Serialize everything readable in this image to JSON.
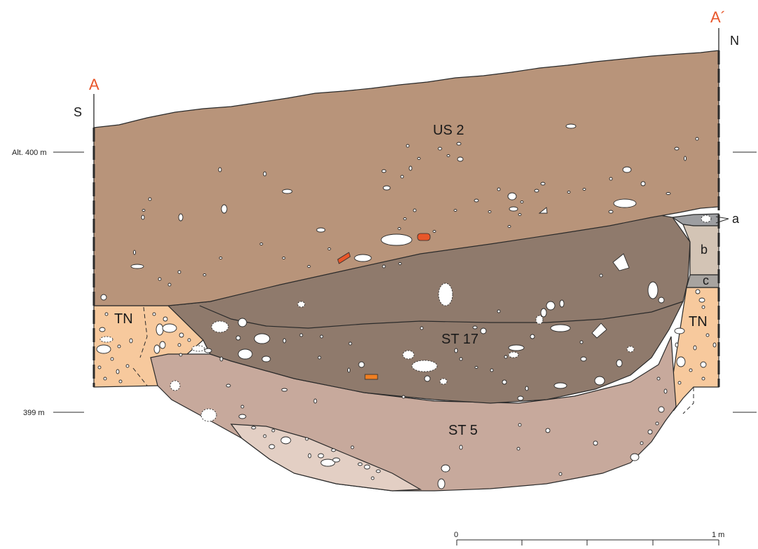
{
  "profile": {
    "start_letter": "A",
    "end_letter": "A´",
    "south": "S",
    "north": "N"
  },
  "altitudes": {
    "upper": "Alt. 400 m",
    "lower": "399 m"
  },
  "units": {
    "us2": "US 2",
    "st17": "ST 17",
    "st5": "ST 5",
    "tn_left": "TN",
    "tn_right": "TN",
    "a": "a",
    "b": "b",
    "c": "c"
  },
  "scale": {
    "zero": "0",
    "max": "1 m"
  },
  "colors": {
    "us2": "#b8947a",
    "st17": "#8f7a6c",
    "st5": "#c7a99c",
    "st5_lower": "#e3cfc4",
    "tn": "#f7c99d",
    "a": "#9d9ea1",
    "b": "#d3c4b5",
    "c": "#a8a4a0",
    "label_red": "#e8562a"
  }
}
